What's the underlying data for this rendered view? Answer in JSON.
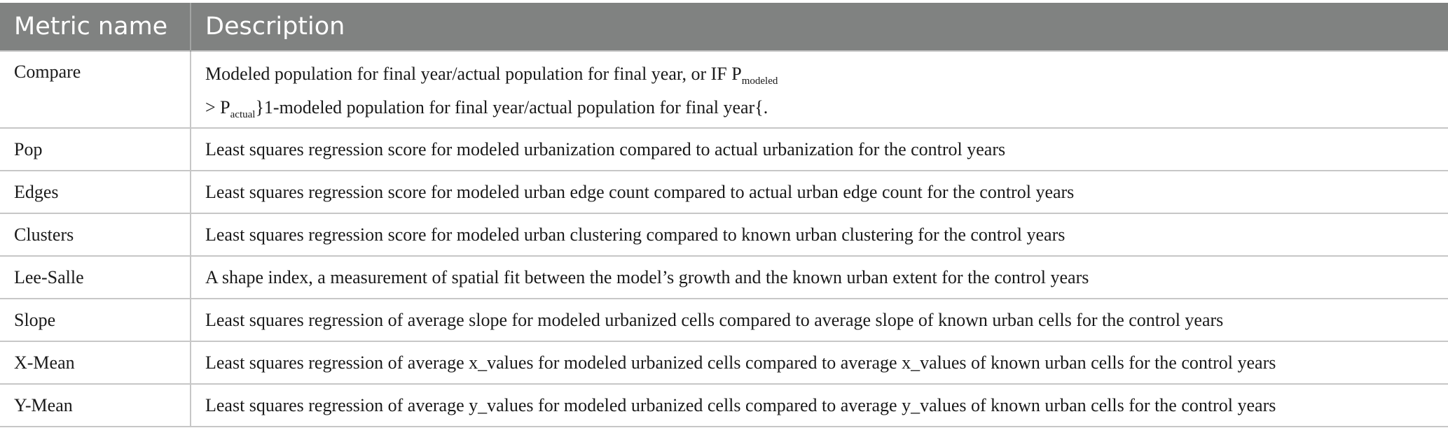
{
  "table": {
    "headers": [
      "Metric name",
      "Description"
    ],
    "first_row": {
      "name": "Compare",
      "line1_text": "Modeled population for final year/actual population for final year, or IF P",
      "line1_sub": "modeled",
      "line2_prefix": "> P",
      "line2_sub": "actual",
      "line2_text": "}1-modeled population for final year/actual population for final year{."
    },
    "rows": [
      {
        "name": "Pop",
        "description": "Least squares regression score for modeled urbanization compared to actual urbanization for the control years"
      },
      {
        "name": "Edges",
        "description": "Least squares regression score for modeled urban edge count compared to actual urban edge count for the control years"
      },
      {
        "name": "Clusters",
        "description": "Least squares regression score for modeled urban clustering compared to known urban clustering for the control years"
      },
      {
        "name": "Lee-Salle",
        "description": "A shape index, a measurement of spatial fit between the model’s growth and the known urban extent for the control years"
      },
      {
        "name": "Slope",
        "description": "Least squares regression of average slope for modeled urbanized cells compared to average slope of known urban cells for the control years"
      },
      {
        "name": "X-Mean",
        "description": "Least squares regression of average x_values for modeled urbanized cells compared to average x_values of known urban cells for the control years"
      },
      {
        "name": "Y-Mean",
        "description": "Least squares regression of average y_values for modeled urbanized cells compared to average y_values of known urban cells for the control years"
      }
    ],
    "colors": {
      "header_bg": "#808281",
      "header_text": "#ffffff",
      "rule": "#c7c7c7",
      "body_text": "#1a1a1a"
    }
  }
}
